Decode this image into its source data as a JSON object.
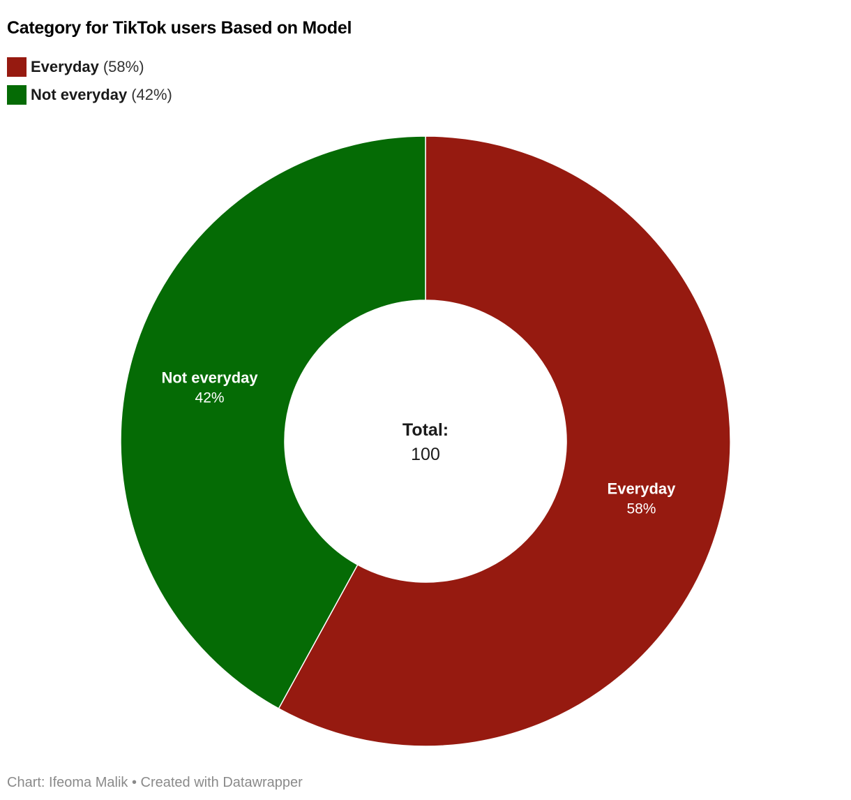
{
  "chart_data": {
    "type": "pie",
    "variant": "donut",
    "title": "Category for TikTok users Based on Model",
    "categories": [
      "Everyday",
      "Not everyday"
    ],
    "values": [
      58,
      42
    ],
    "value_labels": [
      "58%",
      "42%"
    ],
    "legend_values": [
      "(58%)",
      "(42%)"
    ],
    "colors": [
      "#961a10",
      "#056b05"
    ],
    "legend_position": "top-left",
    "center": {
      "label": "Total:",
      "value": "100"
    }
  },
  "footer": {
    "credit": "Chart: Ifeoma Malik • Created with Datawrapper"
  }
}
